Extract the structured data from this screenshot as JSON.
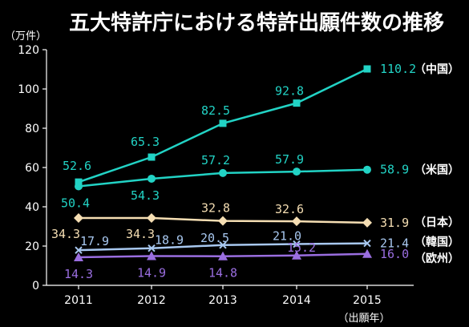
{
  "chart_data": {
    "type": "line",
    "title": "五大特許庁における特許出願件数の推移",
    "ylabel": "（万件）",
    "xlabel": "（出願年）",
    "categories": [
      "2011",
      "2012",
      "2013",
      "2014",
      "2015"
    ],
    "ylim": [
      0,
      120
    ],
    "yticks": [
      "0",
      "20",
      "40",
      "60",
      "80",
      "100",
      "120"
    ],
    "grid": false,
    "legend_position": "right",
    "series": [
      {
        "name": "（中国）",
        "values": [
          52.6,
          65.3,
          82.5,
          92.8,
          110.2
        ],
        "labels": [
          "52.6",
          "65.3",
          "82.5",
          "92.8",
          "110.2"
        ],
        "color": "#22d3c5",
        "marker": "square"
      },
      {
        "name": "（米国）",
        "values": [
          50.4,
          54.3,
          57.2,
          57.9,
          58.9
        ],
        "labels": [
          "50.4",
          "54.3",
          "57.2",
          "57.9",
          "58.9"
        ],
        "color": "#22d3c5",
        "marker": "circle"
      },
      {
        "name": "（日本）",
        "values": [
          34.3,
          34.3,
          32.8,
          32.6,
          31.9
        ],
        "labels": [
          "34.3",
          "34.3",
          "32.8",
          "32.6",
          "31.9"
        ],
        "color": "#f5deb3",
        "marker": "diamond"
      },
      {
        "name": "（韓国）",
        "values": [
          17.9,
          18.9,
          20.5,
          21.0,
          21.4
        ],
        "labels": [
          "17.9",
          "18.9",
          "20.5",
          "21.0",
          "21.4"
        ],
        "color": "#a8c8f0",
        "marker": "x"
      },
      {
        "name": "（欧州）",
        "values": [
          14.3,
          14.9,
          14.8,
          15.2,
          16.0
        ],
        "labels": [
          "14.3",
          "14.9",
          "14.8",
          "15.2",
          "16.0"
        ],
        "color": "#9a6ee0",
        "marker": "triangle"
      }
    ]
  }
}
